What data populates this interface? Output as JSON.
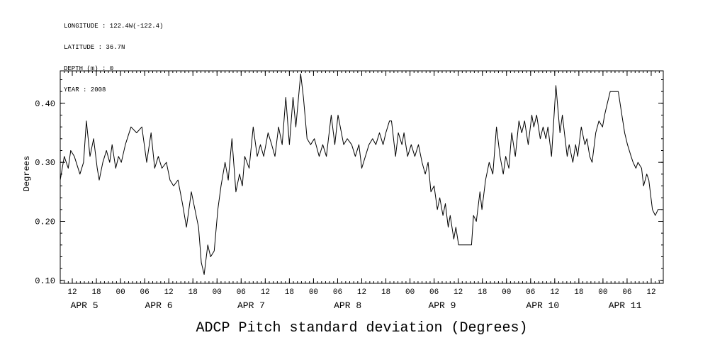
{
  "header": {
    "lines": [
      "LONGITUDE : 122.4W(-122.4)",
      "LATITUDE : 36.7N",
      "DEPTH (m) : 0",
      "YEAR : 2008"
    ]
  },
  "chart_data": {
    "type": "line",
    "title": "ADCP Pitch standard deviation (Degrees)",
    "ylabel": "Degrees",
    "x_unit": "hours since 2008-04-05 09:00",
    "xlim": [
      0,
      150
    ],
    "ylim": [
      0.095,
      0.455
    ],
    "grid": false,
    "legend": "none",
    "line_color": "#000000",
    "background_color": "#ffffff",
    "y_ticks": [
      0.1,
      0.2,
      0.3,
      0.4
    ],
    "y_tick_labels": [
      "0.10",
      "0.20",
      "0.30",
      "0.40"
    ],
    "y_minor_step": 0.02,
    "x_minor_step": 1,
    "x_ticks": [
      {
        "t": 3,
        "label": "12"
      },
      {
        "t": 9,
        "label": "18"
      },
      {
        "t": 15,
        "label": "00"
      },
      {
        "t": 21,
        "label": "06"
      },
      {
        "t": 27,
        "label": "12"
      },
      {
        "t": 33,
        "label": "18"
      },
      {
        "t": 39,
        "label": "00"
      },
      {
        "t": 45,
        "label": "06"
      },
      {
        "t": 51,
        "label": "12"
      },
      {
        "t": 57,
        "label": "18"
      },
      {
        "t": 63,
        "label": "00"
      },
      {
        "t": 69,
        "label": "06"
      },
      {
        "t": 75,
        "label": "12"
      },
      {
        "t": 81,
        "label": "18"
      },
      {
        "t": 87,
        "label": "00"
      },
      {
        "t": 93,
        "label": "06"
      },
      {
        "t": 99,
        "label": "12"
      },
      {
        "t": 105,
        "label": "18"
      },
      {
        "t": 111,
        "label": "00"
      },
      {
        "t": 117,
        "label": "06"
      },
      {
        "t": 123,
        "label": "12"
      },
      {
        "t": 129,
        "label": "18"
      },
      {
        "t": 135,
        "label": "00"
      },
      {
        "t": 141,
        "label": "06"
      },
      {
        "t": 147,
        "label": "12"
      }
    ],
    "day_labels": [
      {
        "t": 6,
        "label": "APR 5"
      },
      {
        "t": 24.5,
        "label": "APR 6"
      },
      {
        "t": 47.5,
        "label": "APR 7"
      },
      {
        "t": 71.5,
        "label": "APR 8"
      },
      {
        "t": 95,
        "label": "APR 9"
      },
      {
        "t": 120,
        "label": "APR 10"
      },
      {
        "t": 140.5,
        "label": "APR 11"
      }
    ],
    "series": [
      {
        "name": "ADCP pitch standard deviation",
        "points": [
          [
            0,
            0.27
          ],
          [
            1,
            0.31
          ],
          [
            2,
            0.29
          ],
          [
            2.6,
            0.32
          ],
          [
            3.5,
            0.31
          ],
          [
            4.9,
            0.28
          ],
          [
            5.8,
            0.3
          ],
          [
            6.5,
            0.37
          ],
          [
            7.4,
            0.31
          ],
          [
            8.3,
            0.34
          ],
          [
            9.2,
            0.29
          ],
          [
            9.7,
            0.27
          ],
          [
            10.6,
            0.3
          ],
          [
            11.5,
            0.32
          ],
          [
            12.3,
            0.3
          ],
          [
            12.9,
            0.33
          ],
          [
            13.8,
            0.29
          ],
          [
            14.5,
            0.31
          ],
          [
            15.2,
            0.3
          ],
          [
            16.2,
            0.33
          ],
          [
            17.6,
            0.36
          ],
          [
            19,
            0.35
          ],
          [
            20.3,
            0.36
          ],
          [
            21.5,
            0.3
          ],
          [
            22.6,
            0.35
          ],
          [
            23.5,
            0.29
          ],
          [
            24.4,
            0.31
          ],
          [
            25.3,
            0.29
          ],
          [
            26.4,
            0.3
          ],
          [
            27.3,
            0.27
          ],
          [
            28.2,
            0.26
          ],
          [
            29.3,
            0.27
          ],
          [
            30.4,
            0.23
          ],
          [
            31.4,
            0.19
          ],
          [
            32.6,
            0.25
          ],
          [
            33.5,
            0.22
          ],
          [
            34.4,
            0.19
          ],
          [
            35.1,
            0.13
          ],
          [
            35.8,
            0.11
          ],
          [
            36.7,
            0.16
          ],
          [
            37.4,
            0.14
          ],
          [
            38.3,
            0.15
          ],
          [
            39.2,
            0.22
          ],
          [
            40,
            0.26
          ],
          [
            41,
            0.3
          ],
          [
            41.8,
            0.27
          ],
          [
            42.7,
            0.34
          ],
          [
            43.7,
            0.25
          ],
          [
            44.6,
            0.28
          ],
          [
            45.3,
            0.26
          ],
          [
            45.9,
            0.31
          ],
          [
            47,
            0.29
          ],
          [
            48,
            0.36
          ],
          [
            49,
            0.31
          ],
          [
            49.8,
            0.33
          ],
          [
            50.6,
            0.31
          ],
          [
            51.7,
            0.35
          ],
          [
            52.6,
            0.33
          ],
          [
            53.4,
            0.31
          ],
          [
            54.3,
            0.36
          ],
          [
            55.2,
            0.33
          ],
          [
            56.1,
            0.41
          ],
          [
            57,
            0.33
          ],
          [
            57.9,
            0.41
          ],
          [
            58.6,
            0.36
          ],
          [
            59.8,
            0.45
          ],
          [
            60.5,
            0.41
          ],
          [
            61.4,
            0.34
          ],
          [
            62.3,
            0.33
          ],
          [
            63.2,
            0.34
          ],
          [
            64.4,
            0.31
          ],
          [
            65.3,
            0.33
          ],
          [
            66.2,
            0.31
          ],
          [
            67.4,
            0.38
          ],
          [
            68.3,
            0.33
          ],
          [
            69.1,
            0.38
          ],
          [
            70.5,
            0.33
          ],
          [
            71.4,
            0.34
          ],
          [
            72.5,
            0.33
          ],
          [
            73.4,
            0.31
          ],
          [
            74.3,
            0.33
          ],
          [
            75,
            0.29
          ],
          [
            75.9,
            0.31
          ],
          [
            76.8,
            0.33
          ],
          [
            77.7,
            0.34
          ],
          [
            78.5,
            0.33
          ],
          [
            79.4,
            0.35
          ],
          [
            80.3,
            0.33
          ],
          [
            81,
            0.35
          ],
          [
            81.9,
            0.37
          ],
          [
            82.4,
            0.37
          ],
          [
            83.4,
            0.31
          ],
          [
            84.1,
            0.35
          ],
          [
            85,
            0.33
          ],
          [
            85.5,
            0.35
          ],
          [
            86.4,
            0.31
          ],
          [
            87.3,
            0.33
          ],
          [
            88.2,
            0.31
          ],
          [
            89.1,
            0.33
          ],
          [
            90,
            0.3
          ],
          [
            90.8,
            0.28
          ],
          [
            91.5,
            0.3
          ],
          [
            92.2,
            0.25
          ],
          [
            93,
            0.26
          ],
          [
            93.8,
            0.22
          ],
          [
            94.4,
            0.24
          ],
          [
            95.2,
            0.21
          ],
          [
            95.8,
            0.23
          ],
          [
            96.5,
            0.19
          ],
          [
            97,
            0.21
          ],
          [
            97.9,
            0.17
          ],
          [
            98.4,
            0.19
          ],
          [
            99.1,
            0.16
          ],
          [
            100.2,
            0.16
          ],
          [
            101.3,
            0.16
          ],
          [
            102.3,
            0.16
          ],
          [
            102.8,
            0.21
          ],
          [
            103.5,
            0.2
          ],
          [
            104.4,
            0.25
          ],
          [
            104.9,
            0.22
          ],
          [
            105.8,
            0.27
          ],
          [
            106.7,
            0.3
          ],
          [
            107.6,
            0.28
          ],
          [
            108.5,
            0.36
          ],
          [
            109.4,
            0.31
          ],
          [
            110.2,
            0.28
          ],
          [
            110.8,
            0.31
          ],
          [
            111.6,
            0.29
          ],
          [
            112.3,
            0.35
          ],
          [
            113.2,
            0.31
          ],
          [
            114.1,
            0.37
          ],
          [
            114.8,
            0.35
          ],
          [
            115.5,
            0.37
          ],
          [
            116.4,
            0.33
          ],
          [
            117.3,
            0.38
          ],
          [
            117.8,
            0.36
          ],
          [
            118.5,
            0.38
          ],
          [
            119.4,
            0.34
          ],
          [
            120.1,
            0.36
          ],
          [
            120.8,
            0.34
          ],
          [
            121.3,
            0.36
          ],
          [
            122.2,
            0.31
          ],
          [
            123.3,
            0.43
          ],
          [
            124.3,
            0.35
          ],
          [
            124.9,
            0.38
          ],
          [
            126.1,
            0.31
          ],
          [
            126.6,
            0.33
          ],
          [
            127.5,
            0.3
          ],
          [
            128.2,
            0.33
          ],
          [
            128.7,
            0.31
          ],
          [
            129.6,
            0.36
          ],
          [
            130.5,
            0.33
          ],
          [
            131,
            0.34
          ],
          [
            131.7,
            0.31
          ],
          [
            132.3,
            0.3
          ],
          [
            133.2,
            0.35
          ],
          [
            134,
            0.37
          ],
          [
            134.9,
            0.36
          ],
          [
            135.4,
            0.38
          ],
          [
            136.1,
            0.4
          ],
          [
            136.8,
            0.42
          ],
          [
            137.8,
            0.42
          ],
          [
            138.8,
            0.42
          ],
          [
            139.7,
            0.38
          ],
          [
            140.4,
            0.35
          ],
          [
            141.1,
            0.33
          ],
          [
            142,
            0.31
          ],
          [
            142.5,
            0.3
          ],
          [
            143.2,
            0.29
          ],
          [
            143.7,
            0.3
          ],
          [
            144.6,
            0.29
          ],
          [
            145.1,
            0.26
          ],
          [
            145.9,
            0.28
          ],
          [
            146.4,
            0.27
          ],
          [
            147.3,
            0.22
          ],
          [
            148,
            0.21
          ],
          [
            148.7,
            0.22
          ],
          [
            149.6,
            0.22
          ]
        ]
      }
    ]
  }
}
